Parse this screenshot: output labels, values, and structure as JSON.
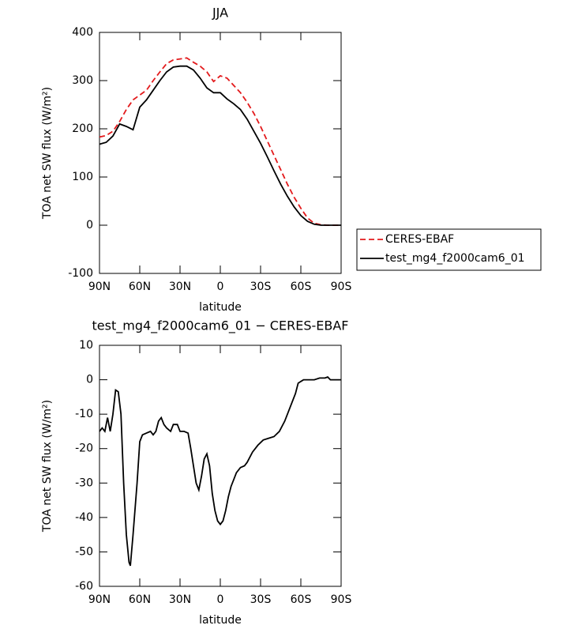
{
  "chart_data": [
    {
      "type": "line",
      "title": "JJA",
      "xlabel": "latitude",
      "ylabel": "TOA net SW flux (W/m²)",
      "x": [
        90,
        85,
        80,
        75,
        70,
        65,
        60,
        55,
        50,
        45,
        40,
        35,
        30,
        25,
        20,
        15,
        10,
        5,
        0,
        -5,
        -10,
        -15,
        -20,
        -25,
        -30,
        -35,
        -40,
        -45,
        -50,
        -55,
        -60,
        -65,
        -70,
        -75,
        -80,
        -85,
        -90
      ],
      "series": [
        {
          "name": "CERES-EBAF",
          "color": "#e31a1c",
          "style": "dashed",
          "values": [
            183,
            186,
            195,
            215,
            240,
            260,
            270,
            280,
            300,
            318,
            335,
            343,
            345,
            347,
            338,
            330,
            318,
            298,
            310,
            305,
            290,
            275,
            255,
            232,
            205,
            175,
            145,
            115,
            85,
            58,
            35,
            15,
            4,
            1,
            0,
            0,
            0
          ]
        },
        {
          "name": "test_mg4_f2000cam6_01",
          "color": "#000000",
          "style": "solid",
          "values": [
            168,
            172,
            185,
            210,
            205,
            198,
            245,
            260,
            280,
            300,
            318,
            328,
            330,
            330,
            322,
            305,
            285,
            275,
            275,
            262,
            252,
            240,
            220,
            195,
            170,
            142,
            113,
            85,
            60,
            38,
            20,
            8,
            2,
            0,
            0,
            0,
            0
          ]
        }
      ],
      "xlim": [
        90,
        -90
      ],
      "xticks": [
        {
          "value": 90,
          "label": "90N"
        },
        {
          "value": 60,
          "label": "60N"
        },
        {
          "value": 30,
          "label": "30N"
        },
        {
          "value": 0,
          "label": "0"
        },
        {
          "value": -30,
          "label": "30S"
        },
        {
          "value": -60,
          "label": "60S"
        },
        {
          "value": -90,
          "label": "90S"
        }
      ],
      "ylim": [
        -100,
        400
      ],
      "yticks": [
        -100,
        0,
        100,
        200,
        300,
        400
      ]
    },
    {
      "type": "line",
      "title": "test_mg4_f2000cam6_01 − CERES-EBAF",
      "xlabel": "latitude",
      "ylabel": "TOA net SW flux (W/m²)",
      "x": [
        90,
        88,
        86,
        84,
        82,
        80,
        78,
        76,
        74,
        72,
        70,
        68,
        67,
        65,
        62,
        60,
        58,
        55,
        52,
        50,
        48,
        46,
        44,
        42,
        40,
        37,
        35,
        32,
        30,
        27,
        24,
        22,
        20,
        18,
        16,
        14,
        12,
        10,
        8,
        6,
        4,
        2,
        0,
        -2,
        -4,
        -6,
        -8,
        -10,
        -12,
        -15,
        -18,
        -20,
        -24,
        -28,
        -32,
        -36,
        -40,
        -44,
        -48,
        -52,
        -56,
        -58,
        -62,
        -66,
        -70,
        -74,
        -78,
        -80,
        -82,
        -90
      ],
      "series": [
        {
          "name": "test_mg4_f2000cam6_01",
          "color": "#000000",
          "style": "solid",
          "values": [
            -15,
            -14,
            -15,
            -11,
            -15,
            -10,
            -3,
            -3.5,
            -10,
            -30,
            -45,
            -53,
            -54,
            -45,
            -30,
            -18,
            -16,
            -15.5,
            -15,
            -16,
            -15,
            -12,
            -11,
            -13,
            -14,
            -15,
            -13,
            -13,
            -15,
            -15,
            -15.5,
            -20,
            -25,
            -30,
            -32,
            -28,
            -23,
            -21.5,
            -25,
            -33,
            -38,
            -41,
            -42,
            -41,
            -38,
            -34,
            -31,
            -29,
            -27,
            -25.5,
            -25,
            -24,
            -21,
            -19,
            -17.5,
            -17,
            -16.5,
            -15,
            -12,
            -8,
            -4,
            -1,
            0,
            0,
            0,
            0.5,
            0.5,
            0.8,
            0,
            0
          ]
        }
      ],
      "xlim": [
        90,
        -90
      ],
      "xticks": [
        {
          "value": 90,
          "label": "90N"
        },
        {
          "value": 60,
          "label": "60N"
        },
        {
          "value": 30,
          "label": "30N"
        },
        {
          "value": 0,
          "label": "0"
        },
        {
          "value": -30,
          "label": "30S"
        },
        {
          "value": -60,
          "label": "60S"
        },
        {
          "value": -90,
          "label": "90S"
        }
      ],
      "ylim": [
        -60,
        10
      ],
      "yticks": [
        -60,
        -50,
        -40,
        -30,
        -20,
        -10,
        0,
        10
      ]
    }
  ]
}
